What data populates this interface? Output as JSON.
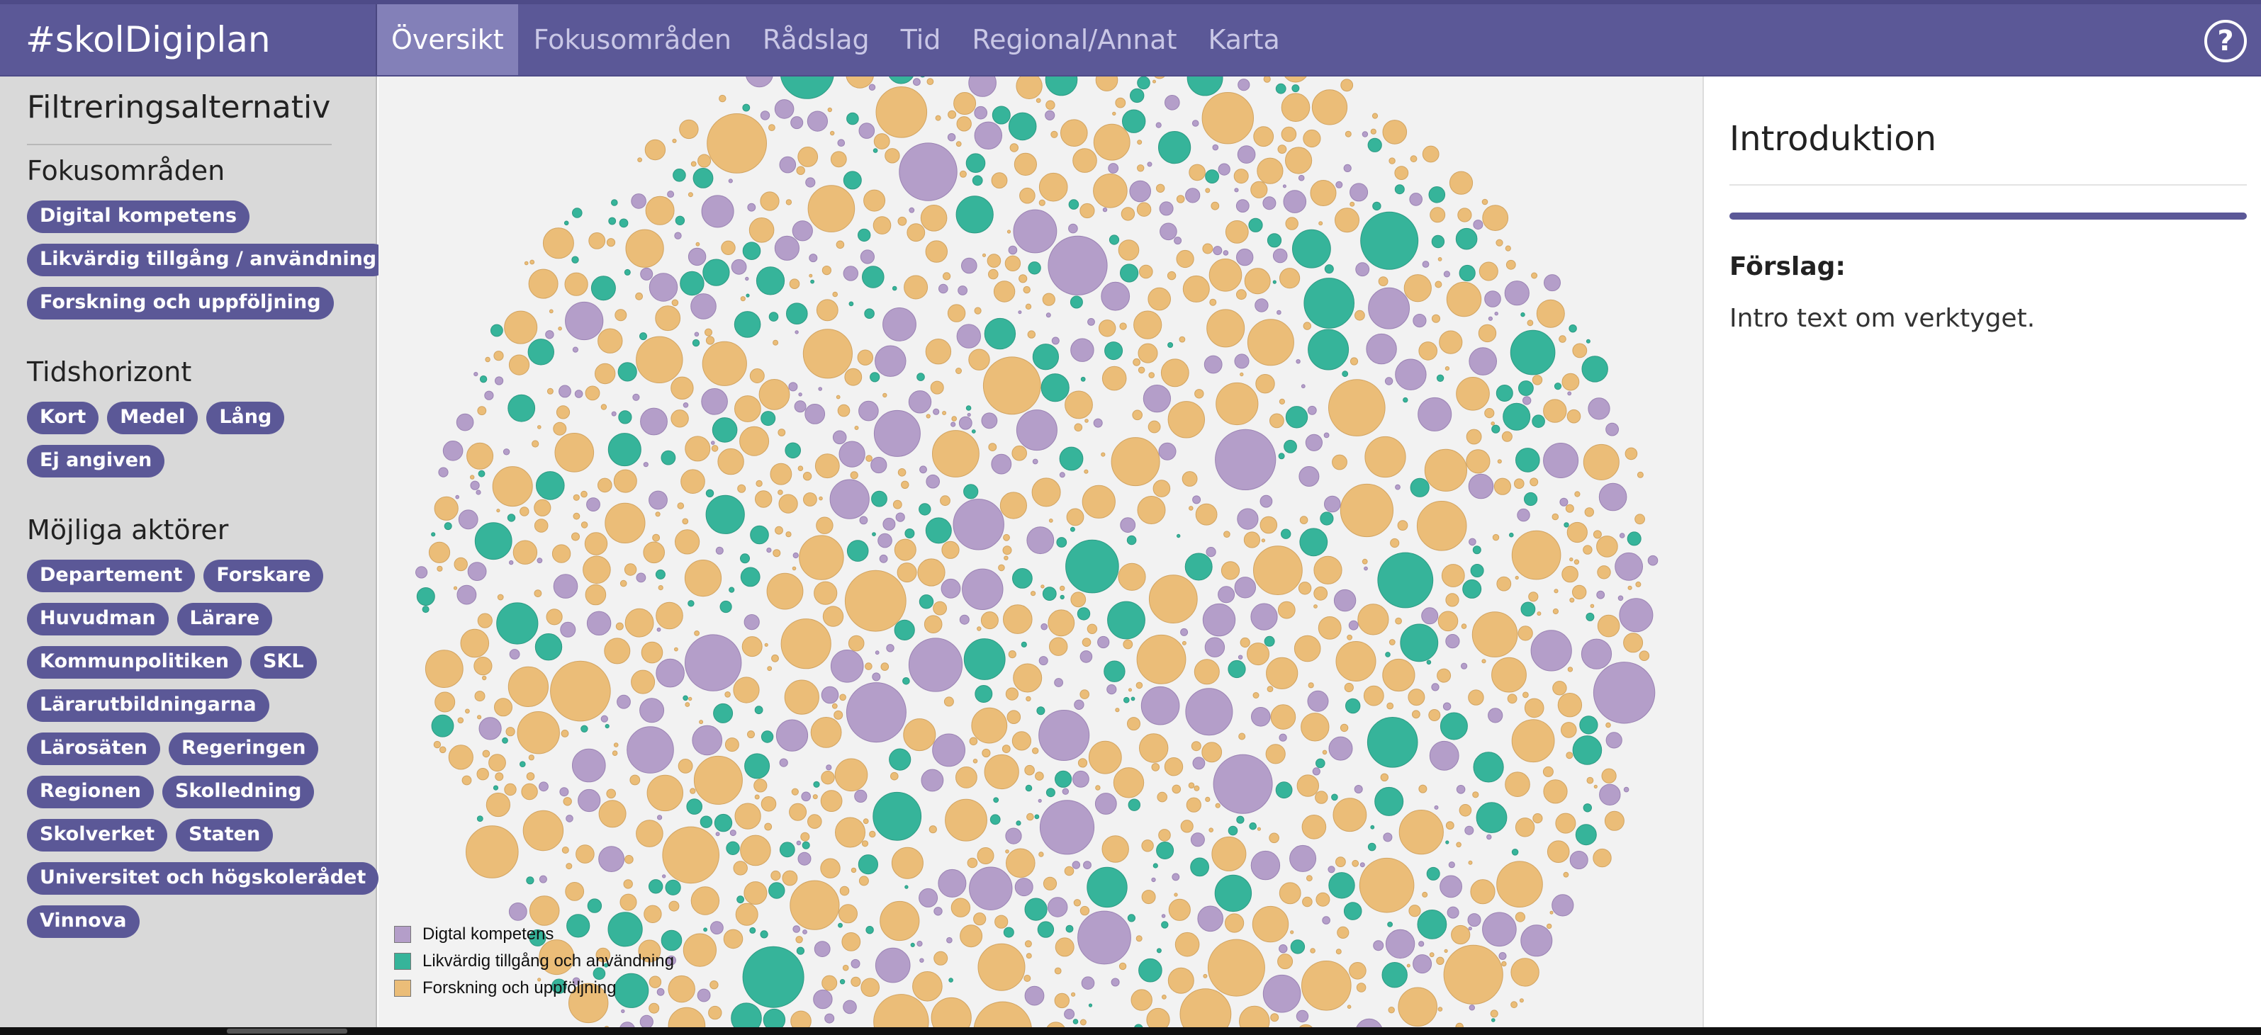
{
  "app": {
    "brand": "#skolDigiplan",
    "help_icon": "help-icon"
  },
  "nav": {
    "tabs": [
      {
        "label": "Översikt",
        "active": true
      },
      {
        "label": "Fokusområden",
        "active": false
      },
      {
        "label": "Rådslag",
        "active": false
      },
      {
        "label": "Tid",
        "active": false
      },
      {
        "label": "Regional/Annat",
        "active": false
      },
      {
        "label": "Karta",
        "active": false
      }
    ]
  },
  "sidebar": {
    "title": "Filtreringsalternativ",
    "sections": [
      {
        "title": "Fokusområden",
        "pills": [
          "Digital kompetens",
          "Likvärdig tillgång / användning",
          "Forskning och uppföljning"
        ]
      },
      {
        "title": "Tidshorizont",
        "pills": [
          "Kort",
          "Medel",
          "Lång",
          "Ej angiven"
        ]
      },
      {
        "title": "Möjliga aktörer",
        "pills": [
          "Departement",
          "Forskare",
          "Huvudman",
          "Lärare",
          "Kommunpolitiken",
          "SKL",
          "Lärarutbildningarna",
          "Lärosäten",
          "Regeringen",
          "Regionen",
          "Skolledning",
          "Skolverket",
          "Staten",
          "Universitet och högskolerådet",
          "Vinnova"
        ]
      }
    ]
  },
  "legend": [
    {
      "label": "Digtal kompetens",
      "color": "#b49ec9"
    },
    {
      "label": "Likvärdig tillgång och användning",
      "color": "#36b49a"
    },
    {
      "label": "Forskning och uppföljning",
      "color": "#ebbd78"
    }
  ],
  "right_panel": {
    "title": "Introduktion",
    "subhead": "Förslag:",
    "text": "Intro text om verktyget."
  }
}
